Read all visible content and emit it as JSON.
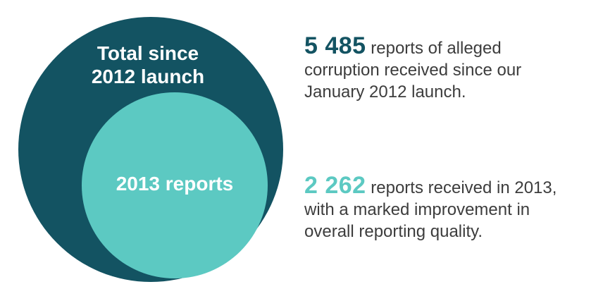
{
  "colors": {
    "outer_circle": "#135362",
    "inner_circle": "#5cc9c2",
    "total_number": "#135362",
    "year_number": "#5cc9c2",
    "body_text": "#3d3d3d"
  },
  "diagram": {
    "outer_label": [
      "Total since",
      "2012 launch"
    ],
    "inner_label": "2013 reports"
  },
  "stats": {
    "total": {
      "number": "5 485",
      "text_lines": [
        "reports of alleged",
        "corruption received since our",
        "January 2012 launch."
      ]
    },
    "year": {
      "number": "2 262",
      "text_lines": [
        "reports received in 2013,",
        "with a marked improvement in",
        "overall reporting quality."
      ]
    }
  }
}
